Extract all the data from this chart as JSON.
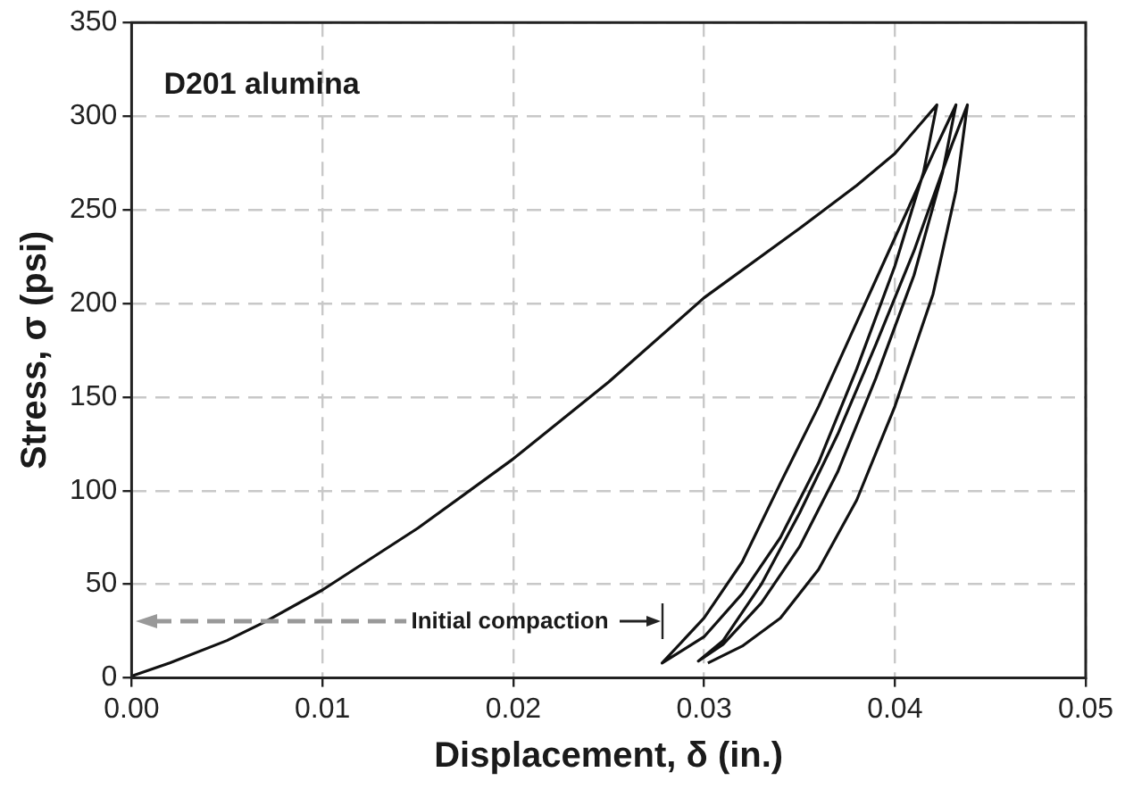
{
  "chart_data": {
    "type": "line",
    "xlabel": "Displacement, δ (in.)",
    "ylabel": "Stress, σ (psi)",
    "annotations": [
      "D201 alumina",
      "Initial compaction"
    ],
    "series": [
      {
        "color": "#111111",
        "x": [
          0,
          0.002,
          0.005,
          0.007,
          0.01,
          0.015,
          0.02,
          0.025,
          0.03,
          0.035,
          0.038,
          0.04,
          0.0422,
          0.0415,
          0.04,
          0.038,
          0.036,
          0.034,
          0.032,
          0.03,
          0.0278,
          0.03,
          0.032,
          0.034,
          0.036,
          0.038,
          0.04,
          0.042,
          0.0432,
          0.0425,
          0.041,
          0.039,
          0.037,
          0.035,
          0.033,
          0.031,
          0.0297,
          0.031,
          0.033,
          0.035,
          0.037,
          0.039,
          0.041,
          0.043,
          0.0438,
          0.0432,
          0.042,
          0.04,
          0.038,
          0.036,
          0.034,
          0.032,
          0.0302
        ],
        "values": [
          1,
          8,
          20,
          30,
          47,
          80,
          117,
          158,
          203,
          240,
          263,
          280,
          306,
          270,
          220,
          165,
          115,
          75,
          45,
          22,
          8,
          32,
          62,
          104,
          145,
          190,
          235,
          280,
          306,
          270,
          215,
          160,
          110,
          70,
          40,
          18,
          9,
          20,
          50,
          88,
          130,
          178,
          228,
          285,
          306,
          260,
          205,
          145,
          95,
          58,
          32,
          17,
          8
        ]
      }
    ],
    "xlim": [
      0,
      0.05
    ],
    "xticks": [
      {
        "value": 0,
        "label": "0.00"
      },
      {
        "value": 0.01,
        "label": "0.01"
      },
      {
        "value": 0.02,
        "label": "0.02"
      },
      {
        "value": 0.03,
        "label": "0.03"
      },
      {
        "value": 0.04,
        "label": "0.04"
      },
      {
        "value": 0.05,
        "label": "0.05"
      }
    ],
    "ylim": [
      0,
      350
    ],
    "yticks": [
      0,
      50,
      100,
      150,
      200,
      250,
      300,
      350
    ],
    "grid": true,
    "legend": false,
    "marker": "none",
    "line_style": "solid"
  }
}
